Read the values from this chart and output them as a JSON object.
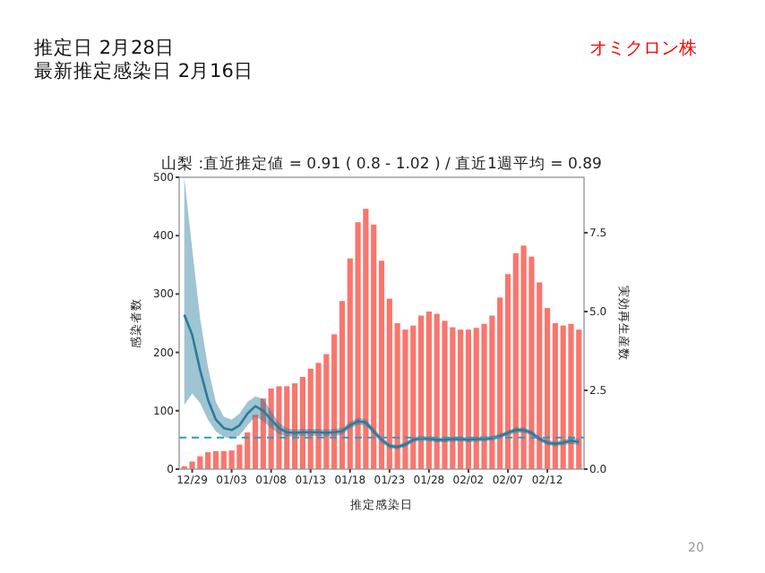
{
  "chart_data": {
    "type": "bar",
    "title": "山梨 :直近推定値 = 0.91 ( 0.8 - 1.02 ) / 直近1週平均 = 0.89",
    "xlabel": "推定感染日",
    "ylabel": "感染者数",
    "y2label": "実効再生産数",
    "annotations": [
      "推定日  2月28日",
      "最新推定感染日  2月16日",
      "オミクロン株",
      "20"
    ],
    "categories": [
      null,
      "12/29",
      null,
      null,
      null,
      null,
      "01/03",
      null,
      null,
      null,
      null,
      "01/08",
      null,
      null,
      null,
      null,
      "01/13",
      null,
      null,
      null,
      null,
      "01/18",
      null,
      null,
      null,
      null,
      "01/23",
      null,
      null,
      null,
      null,
      "01/28",
      null,
      null,
      null,
      null,
      "02/02",
      null,
      null,
      null,
      null,
      "02/07",
      null,
      null,
      null,
      null,
      "02/12",
      null,
      null,
      null,
      null
    ],
    "series": [
      {
        "color": "#f8766d",
        "values": [
          5,
          13,
          22,
          29,
          31,
          31,
          32,
          42,
          63,
          93,
          121,
          138,
          142,
          142,
          147,
          158,
          172,
          182,
          197,
          231,
          288,
          361,
          423,
          446,
          419,
          357,
          292,
          250,
          239,
          246,
          263,
          270,
          266,
          254,
          243,
          239,
          239,
          242,
          249,
          263,
          294,
          334,
          370,
          383,
          364,
          320,
          276,
          250,
          246,
          249,
          239
        ]
      },
      {
        "type": "line",
        "axis": "y2",
        "color": "#2b7c9c",
        "values": [
          4.9,
          4.26,
          3.15,
          2.2,
          1.57,
          1.3,
          1.24,
          1.39,
          1.76,
          2.0,
          1.85,
          1.57,
          1.3,
          1.17,
          1.15,
          1.17,
          1.17,
          1.17,
          1.15,
          1.17,
          1.2,
          1.39,
          1.52,
          1.48,
          1.2,
          0.93,
          0.74,
          0.7,
          0.78,
          0.93,
          0.98,
          0.96,
          0.93,
          0.93,
          0.95,
          0.96,
          0.93,
          0.95,
          0.96,
          0.98,
          1.05,
          1.15,
          1.24,
          1.24,
          1.15,
          0.96,
          0.84,
          0.8,
          0.84,
          0.9,
          0.86
        ],
        "lower": [
          2.04,
          2.4,
          2.1,
          1.57,
          1.2,
          1.02,
          0.96,
          1.07,
          1.39,
          1.67,
          1.52,
          1.3,
          1.11,
          1.04,
          1.04,
          1.06,
          1.06,
          1.06,
          1.04,
          1.06,
          1.09,
          1.28,
          1.41,
          1.37,
          1.1,
          0.84,
          0.66,
          0.63,
          0.7,
          0.85,
          0.9,
          0.88,
          0.85,
          0.85,
          0.87,
          0.88,
          0.85,
          0.87,
          0.88,
          0.9,
          0.97,
          1.07,
          1.15,
          1.15,
          1.07,
          0.88,
          0.76,
          0.72,
          0.76,
          0.8,
          0.76
        ],
        "upper": [
          9.26,
          7.0,
          4.8,
          3.24,
          2.13,
          1.67,
          1.57,
          1.76,
          2.13,
          2.31,
          2.22,
          1.85,
          1.48,
          1.3,
          1.26,
          1.28,
          1.28,
          1.28,
          1.26,
          1.28,
          1.31,
          1.5,
          1.63,
          1.59,
          1.3,
          1.02,
          0.82,
          0.77,
          0.86,
          1.01,
          1.06,
          1.04,
          1.01,
          1.01,
          1.03,
          1.04,
          1.01,
          1.03,
          1.04,
          1.06,
          1.13,
          1.23,
          1.33,
          1.33,
          1.23,
          1.04,
          0.92,
          0.88,
          0.92,
          1.0,
          0.96
        ]
      }
    ],
    "ylim": [
      0,
      500
    ],
    "yticks": [
      0,
      100,
      200,
      300,
      400,
      500
    ],
    "y2lim": [
      0,
      9.26
    ],
    "y2ticks": [
      {
        "value": 0,
        "label": "0.0"
      },
      {
        "value": 2.5,
        "label": "2.5"
      },
      {
        "value": 5,
        "label": "5.0"
      },
      {
        "value": 7.5,
        "label": "7.5"
      }
    ],
    "ref_lines": [
      {
        "axis": "y2",
        "value": 1,
        "color": "#2b9cc4",
        "line_style": "dashed"
      }
    ],
    "grid": false
  }
}
